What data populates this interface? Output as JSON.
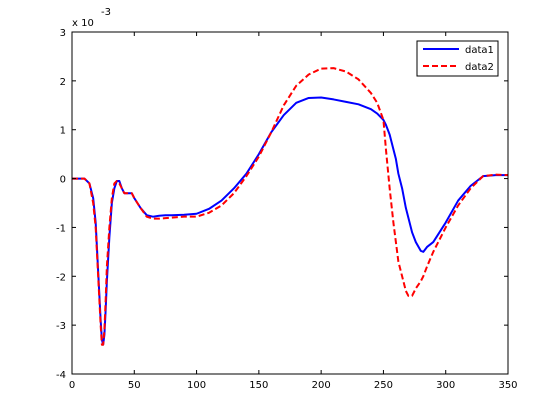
{
  "colors": {
    "background": "#ffffff",
    "axes": "#000000",
    "series_blue": "#0000ff",
    "series_red": "#ff0000"
  },
  "chart_data": {
    "type": "line",
    "title": "",
    "xlabel": "",
    "ylabel": "",
    "xlim": [
      0,
      350
    ],
    "ylim": [
      -0.004,
      0.003
    ],
    "grid": false,
    "legend_position": "top-right",
    "y_exponent_label": {
      "base": "x 10",
      "exponent": "-3"
    },
    "x_ticks": [
      {
        "value": 0,
        "label": "0"
      },
      {
        "value": 50,
        "label": "50"
      },
      {
        "value": 100,
        "label": "100"
      },
      {
        "value": 150,
        "label": "150"
      },
      {
        "value": 200,
        "label": "200"
      },
      {
        "value": 250,
        "label": "250"
      },
      {
        "value": 300,
        "label": "300"
      },
      {
        "value": 350,
        "label": "350"
      }
    ],
    "y_ticks": [
      {
        "value": -0.004,
        "label": "-4"
      },
      {
        "value": -0.003,
        "label": "-3"
      },
      {
        "value": -0.002,
        "label": "-2"
      },
      {
        "value": -0.001,
        "label": "-1"
      },
      {
        "value": 0,
        "label": "0"
      },
      {
        "value": 0.001,
        "label": "1"
      },
      {
        "value": 0.002,
        "label": "2"
      },
      {
        "value": 0.003,
        "label": "3"
      }
    ],
    "series": [
      {
        "name": "data1",
        "color": "#0000ff",
        "style": "solid",
        "x": [
          0,
          5,
          10,
          14,
          17,
          19,
          20,
          21,
          22,
          23,
          24,
          25,
          26,
          27,
          28,
          30,
          32,
          34,
          36,
          38,
          40,
          42,
          45,
          48,
          50,
          55,
          60,
          65,
          70,
          75,
          80,
          90,
          100,
          110,
          120,
          130,
          140,
          150,
          160,
          170,
          180,
          190,
          200,
          210,
          220,
          230,
          240,
          245,
          250,
          252,
          255,
          258,
          260,
          262,
          265,
          268,
          270,
          273,
          276,
          280,
          282,
          285,
          290,
          300,
          310,
          320,
          330,
          340,
          350
        ],
        "y": [
          0,
          0,
          0,
          -0.0001,
          -0.0004,
          -0.0009,
          -0.0014,
          -0.0019,
          -0.0024,
          -0.0029,
          -0.0033,
          -0.0034,
          -0.0032,
          -0.0027,
          -0.0021,
          -0.0012,
          -0.0005,
          -0.0002,
          -5e-05,
          -5e-05,
          -0.0002,
          -0.0003,
          -0.0003,
          -0.0003,
          -0.0004,
          -0.0006,
          -0.00075,
          -0.00078,
          -0.00076,
          -0.00075,
          -0.00075,
          -0.00074,
          -0.00072,
          -0.00062,
          -0.00045,
          -0.0002,
          0.0001,
          0.0005,
          0.00095,
          0.0013,
          0.00155,
          0.00165,
          0.00166,
          0.00162,
          0.00157,
          0.00152,
          0.00142,
          0.00133,
          0.0012,
          0.0011,
          0.0009,
          0.0006,
          0.0004,
          0.0001,
          -0.0002,
          -0.0006,
          -0.0008,
          -0.0011,
          -0.0013,
          -0.00148,
          -0.0015,
          -0.0014,
          -0.0013,
          -0.0009,
          -0.00045,
          -0.00015,
          5e-05,
          7e-05,
          7e-05
        ]
      },
      {
        "name": "data2",
        "color": "#ff0000",
        "style": "dashed",
        "x": [
          0,
          5,
          10,
          14,
          17,
          19,
          20,
          21,
          22,
          23,
          24,
          25,
          26,
          27,
          28,
          30,
          32,
          34,
          36,
          38,
          40,
          42,
          45,
          48,
          50,
          55,
          60,
          65,
          70,
          75,
          80,
          90,
          100,
          110,
          120,
          130,
          140,
          150,
          160,
          170,
          180,
          190,
          200,
          210,
          220,
          230,
          240,
          245,
          250,
          252,
          255,
          258,
          260,
          262,
          265,
          268,
          270,
          273,
          276,
          280,
          282,
          285,
          290,
          300,
          310,
          320,
          330,
          340,
          350
        ],
        "y": [
          0,
          0,
          0,
          -0.0001,
          -0.0005,
          -0.001,
          -0.0015,
          -0.002,
          -0.0025,
          -0.003,
          -0.0034,
          -0.0034,
          -0.0031,
          -0.0025,
          -0.0018,
          -0.001,
          -0.0004,
          -0.0001,
          -5e-05,
          -0.0001,
          -0.0002,
          -0.0003,
          -0.0003,
          -0.0003,
          -0.0004,
          -0.0006,
          -0.00078,
          -0.00082,
          -0.00082,
          -0.00081,
          -0.0008,
          -0.00078,
          -0.00078,
          -0.0007,
          -0.00055,
          -0.0003,
          5e-05,
          0.00045,
          0.00095,
          0.0015,
          0.0019,
          0.00213,
          0.00225,
          0.00226,
          0.00219,
          0.00203,
          0.00175,
          0.00155,
          0.0012,
          0.0006,
          -0.0002,
          -0.0009,
          -0.0013,
          -0.0017,
          -0.002,
          -0.0023,
          -0.0024,
          -0.0024,
          -0.00225,
          -0.0021,
          -0.002,
          -0.0018,
          -0.0015,
          -0.001,
          -0.00055,
          -0.0002,
          5e-05,
          8e-05,
          7e-05
        ]
      }
    ]
  }
}
